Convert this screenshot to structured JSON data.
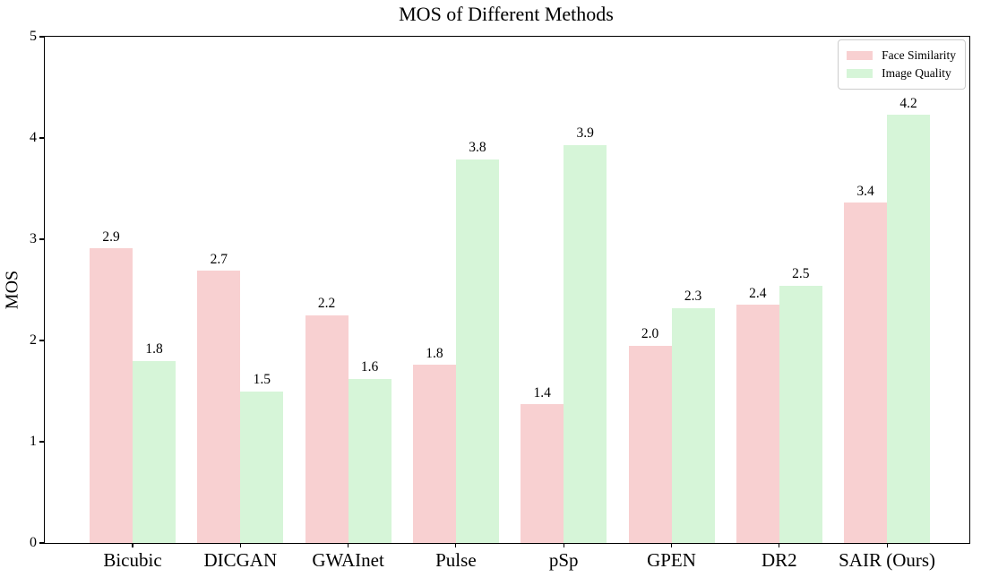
{
  "title": "MOS of Different Methods",
  "y_axis": {
    "label": "MOS",
    "ticks": [
      "0",
      "1",
      "2",
      "3",
      "4",
      "5"
    ],
    "max": 5
  },
  "legend": {
    "items": [
      {
        "name": "Face Similarity",
        "color": "#f8d0d1"
      },
      {
        "name": "Image Quality",
        "color": "#d6f5d8"
      }
    ]
  },
  "chart_data": {
    "type": "bar",
    "title": "MOS of Different Methods",
    "categories": [
      "Bicubic",
      "DICGAN",
      "GWAInet",
      "Pulse",
      "pSp",
      "GPEN",
      "DR2",
      "SAIR (Ours)"
    ],
    "series": [
      {
        "name": "Face Similarity",
        "color": "#f8d0d1",
        "values": [
          2.91,
          2.69,
          2.25,
          1.76,
          1.37,
          1.95,
          2.35,
          3.36
        ],
        "labels": [
          "2.9",
          "2.7",
          "2.2",
          "1.8",
          "1.4",
          "2.0",
          "2.4",
          "3.4"
        ]
      },
      {
        "name": "Image Quality",
        "color": "#d6f5d8",
        "values": [
          1.8,
          1.5,
          1.62,
          3.79,
          3.93,
          2.32,
          2.54,
          4.23
        ],
        "labels": [
          "1.8",
          "1.5",
          "1.6",
          "3.8",
          "3.9",
          "2.3",
          "2.5",
          "4.2"
        ]
      }
    ],
    "xlabel": "",
    "ylabel": "MOS",
    "ylim": [
      0,
      5
    ],
    "grid": false,
    "legend_position": "upper right"
  }
}
